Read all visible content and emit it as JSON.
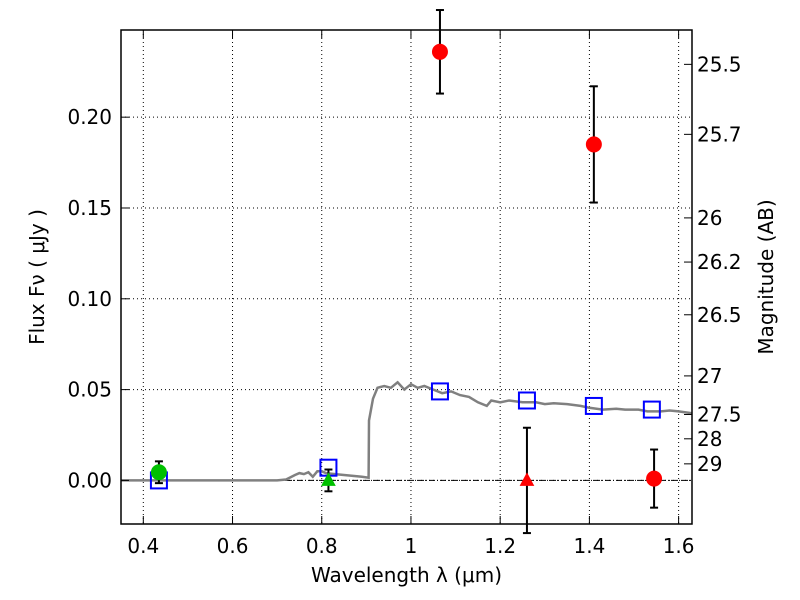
{
  "chart_data": {
    "type": "scatter",
    "title": "",
    "xlabel": "Wavelength  λ (μm)",
    "ylabel": "Flux  Fν  ( μJy )",
    "ylabel_right": "Magnitude (AB)",
    "xlim": [
      0.35,
      1.63
    ],
    "ylim": [
      -0.024,
      0.248
    ],
    "grid": true,
    "x_ticks": [
      0.4,
      0.6,
      0.8,
      1.0,
      1.2,
      1.4,
      1.6
    ],
    "x_tick_labels": [
      "0.4",
      "0.6",
      "0.8",
      "1",
      "1.2",
      "1.4",
      "1.6"
    ],
    "y_ticks": [
      0.0,
      0.05,
      0.1,
      0.15,
      0.2
    ],
    "y_tick_labels": [
      "0.00",
      "0.05",
      "0.10",
      "0.15",
      "0.20"
    ],
    "right_ticks": [
      {
        "mag": 25.5,
        "label": "25.5"
      },
      {
        "mag": 25.7,
        "label": "25.7"
      },
      {
        "mag": 26.0,
        "label": "26"
      },
      {
        "mag": 26.2,
        "label": "26.2"
      },
      {
        "mag": 26.5,
        "label": "26.5"
      },
      {
        "mag": 27.0,
        "label": "27"
      },
      {
        "mag": 27.5,
        "label": "27.5"
      },
      {
        "mag": 28.0,
        "label": "28"
      },
      {
        "mag": 29.0,
        "label": "29"
      }
    ],
    "series": [
      {
        "kind": "line",
        "color": "#808080",
        "points": [
          [
            0.35,
            0.0
          ],
          [
            0.7,
            0.0
          ],
          [
            0.72,
            0.0005
          ],
          [
            0.74,
            0.003
          ],
          [
            0.75,
            0.004
          ],
          [
            0.76,
            0.0035
          ],
          [
            0.77,
            0.0045
          ],
          [
            0.78,
            0.002
          ],
          [
            0.79,
            0.005
          ],
          [
            0.8,
            0.005
          ],
          [
            0.81,
            0.004
          ],
          [
            0.83,
            0.0035
          ],
          [
            0.85,
            0.003
          ],
          [
            0.87,
            0.0025
          ],
          [
            0.89,
            0.002
          ],
          [
            0.905,
            0.0015
          ],
          [
            0.906,
            0.033
          ],
          [
            0.915,
            0.045
          ],
          [
            0.925,
            0.051
          ],
          [
            0.94,
            0.052
          ],
          [
            0.955,
            0.051
          ],
          [
            0.97,
            0.054
          ],
          [
            0.985,
            0.05
          ],
          [
            1.0,
            0.053
          ],
          [
            1.015,
            0.051
          ],
          [
            1.03,
            0.052
          ],
          [
            1.05,
            0.05
          ],
          [
            1.07,
            0.048
          ],
          [
            1.09,
            0.049
          ],
          [
            1.11,
            0.047
          ],
          [
            1.13,
            0.046
          ],
          [
            1.15,
            0.043
          ],
          [
            1.17,
            0.041
          ],
          [
            1.18,
            0.044
          ],
          [
            1.2,
            0.043
          ],
          [
            1.22,
            0.044
          ],
          [
            1.25,
            0.043
          ],
          [
            1.28,
            0.043
          ],
          [
            1.3,
            0.042
          ],
          [
            1.32,
            0.0425
          ],
          [
            1.35,
            0.042
          ],
          [
            1.38,
            0.041
          ],
          [
            1.4,
            0.04
          ],
          [
            1.43,
            0.039
          ],
          [
            1.46,
            0.0395
          ],
          [
            1.48,
            0.039
          ],
          [
            1.51,
            0.039
          ],
          [
            1.53,
            0.038
          ],
          [
            1.56,
            0.038
          ],
          [
            1.58,
            0.0385
          ],
          [
            1.6,
            0.038
          ],
          [
            1.63,
            0.037
          ]
        ]
      },
      {
        "kind": "square",
        "color": "#0000ff",
        "points": [
          [
            0.435,
            0.0
          ],
          [
            0.815,
            0.007
          ],
          [
            1.065,
            0.049
          ],
          [
            1.26,
            0.044
          ],
          [
            1.41,
            0.041
          ],
          [
            1.54,
            0.039
          ]
        ]
      },
      {
        "kind": "circle",
        "color": "#ff0000",
        "points": [
          {
            "x": 1.065,
            "y": 0.236,
            "err": 0.023
          },
          {
            "x": 1.41,
            "y": 0.185,
            "err": 0.032
          },
          {
            "x": 1.545,
            "y": 0.001,
            "err": 0.016
          }
        ]
      },
      {
        "kind": "circle",
        "color": "#00c000",
        "points": [
          {
            "x": 0.435,
            "y": 0.0045,
            "err": 0.006
          }
        ]
      },
      {
        "kind": "triangle",
        "color": "#00c000",
        "points": [
          {
            "x": 0.815,
            "y": 0.0,
            "err": 0.006
          }
        ]
      },
      {
        "kind": "triangle",
        "color": "#ff0000",
        "points": [
          {
            "x": 1.26,
            "y": 0.0,
            "err": 0.029
          }
        ]
      }
    ]
  }
}
